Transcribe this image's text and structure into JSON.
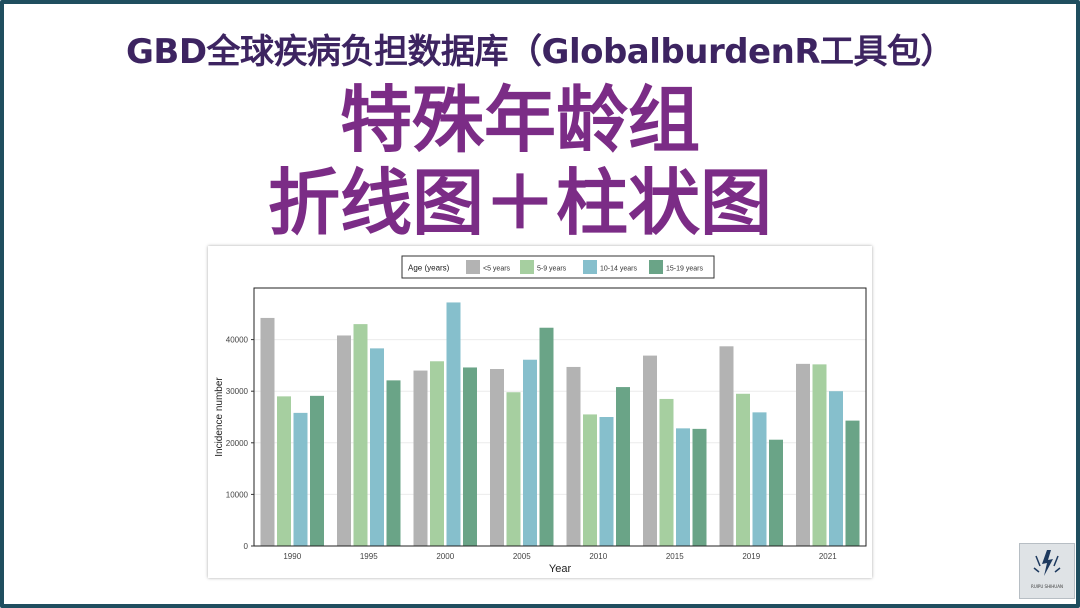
{
  "page": {
    "subtitle": "GBD全球疾病负担数据库（GlobalburdenR工具包）",
    "title_line1": "特殊年龄组",
    "title_line2": "折线图＋柱状图",
    "colors": {
      "frame": "#1f4e5f",
      "subtitle": "#3d2461",
      "title": "#7b2c86"
    }
  },
  "chart_data": {
    "type": "bar",
    "xlabel": "Year",
    "ylabel": "Incidence number",
    "ylim": [
      0,
      50000
    ],
    "yticks": [
      0,
      10000,
      20000,
      30000,
      40000
    ],
    "grid": true,
    "legend": {
      "title": "Age (years)",
      "position": "top"
    },
    "categories": [
      "1990",
      "1995",
      "2000",
      "2005",
      "2010",
      "2015",
      "2019",
      "2021"
    ],
    "series": [
      {
        "name": "<5 years",
        "color": "#b3b3b3",
        "values": [
          44200,
          40800,
          34000,
          34300,
          34700,
          36900,
          38700,
          35300
        ]
      },
      {
        "name": "5-9 years",
        "color": "#a6cfa0",
        "values": [
          29000,
          43000,
          35800,
          29800,
          25500,
          28500,
          29500,
          35200
        ]
      },
      {
        "name": "10-14 years",
        "color": "#86bfcc",
        "values": [
          25800,
          38300,
          47200,
          36100,
          25000,
          22800,
          25900,
          30000
        ]
      },
      {
        "name": "15-19 years",
        "color": "#6aa487",
        "values": [
          29100,
          32100,
          34600,
          42300,
          30800,
          22700,
          20600,
          24300
        ]
      }
    ]
  },
  "watermark": {
    "label": "RUIPU SHIHUAN"
  }
}
